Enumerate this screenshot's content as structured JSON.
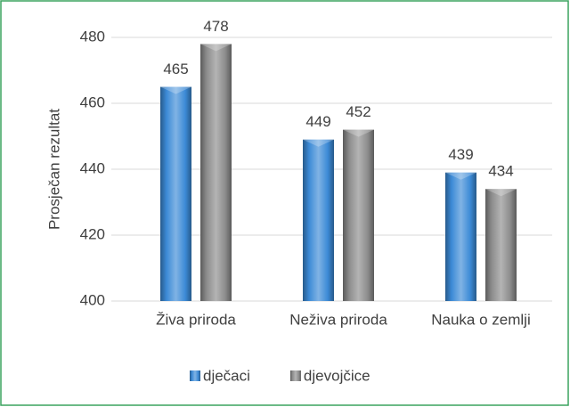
{
  "chart_data": {
    "type": "bar",
    "y_label": "Prosječan rezultat",
    "categories": [
      "Živa priroda",
      "Neživa priroda",
      "Nauka o zemlji"
    ],
    "series": [
      {
        "name": "dječaci",
        "color": "#3c8ad6",
        "values": [
          465,
          449,
          439
        ]
      },
      {
        "name": "djevojčice",
        "color": "#8c8c8c",
        "values": [
          478,
          452,
          434
        ]
      }
    ],
    "ylim": [
      400,
      480
    ],
    "yticks": [
      400,
      420,
      440,
      460,
      480
    ],
    "grid": true,
    "legend": "bottom"
  }
}
